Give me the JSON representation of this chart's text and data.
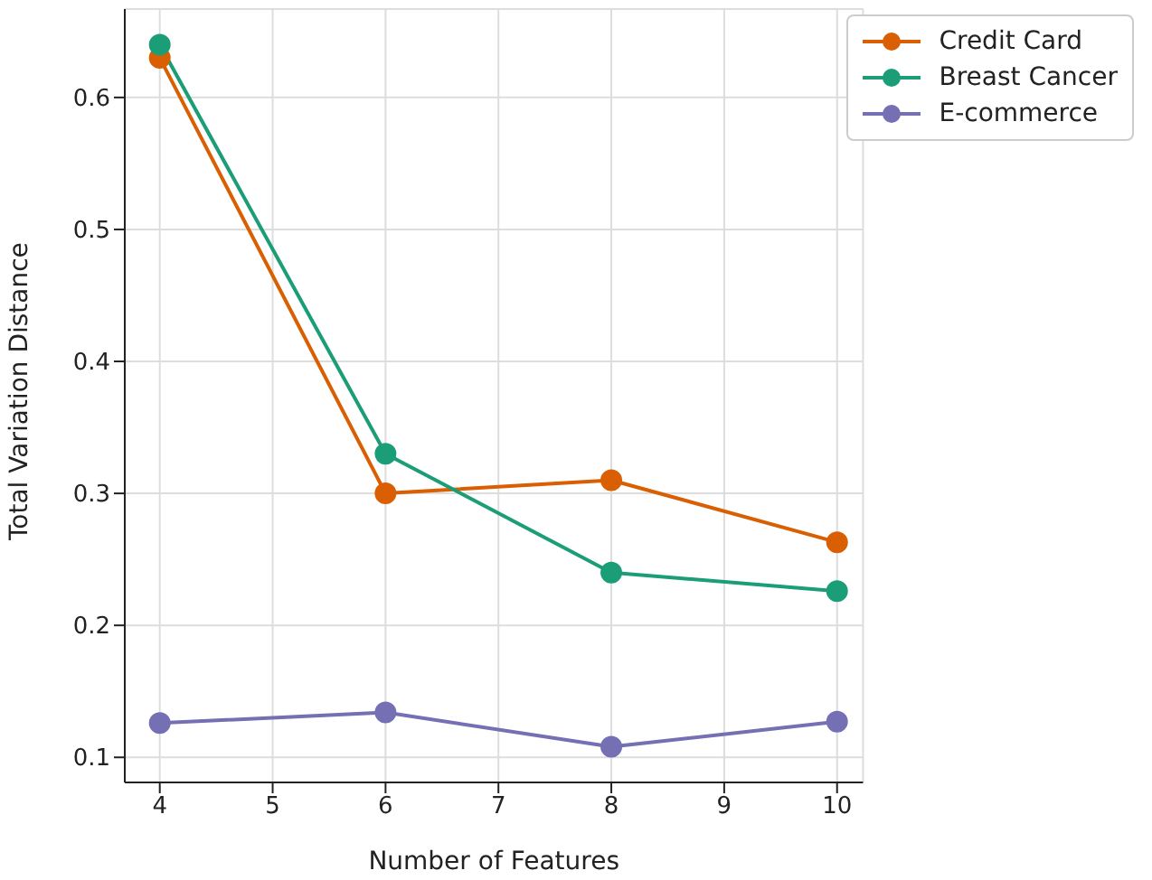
{
  "chart_data": {
    "type": "line",
    "xlabel": "Number of Features",
    "ylabel": "Total Variation Distance",
    "x": [
      4,
      6,
      8,
      10
    ],
    "series": [
      {
        "name": "Credit Card",
        "color": "#d95f02",
        "values": [
          0.63,
          0.3,
          0.31,
          0.263
        ]
      },
      {
        "name": "Breast Cancer",
        "color": "#1b9e77",
        "values": [
          0.64,
          0.33,
          0.24,
          0.226
        ]
      },
      {
        "name": "E-commerce",
        "color": "#7570b3",
        "values": [
          0.126,
          0.134,
          0.108,
          0.127
        ]
      }
    ],
    "xlim": [
      3.69,
      10.23
    ],
    "xticks": [
      4,
      5,
      6,
      7,
      8,
      9,
      10
    ],
    "ylim": [
      0.081,
      0.667
    ],
    "yticks": [
      0.1,
      0.2,
      0.3,
      0.4,
      0.5,
      0.6
    ],
    "grid": true,
    "legend": "top right",
    "marker": "circle",
    "line_style": "solid"
  }
}
